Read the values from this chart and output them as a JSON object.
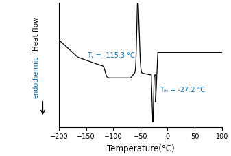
{
  "xlabel": "Temperature(°C)",
  "ylabel_main": "Heat flow",
  "ylabel_sub": "endothermic",
  "xlim": [
    -200,
    100
  ],
  "xticks": [
    -200,
    -150,
    -100,
    -50,
    0,
    50,
    100
  ],
  "annotation_tg": "Tᵧ = -115.3 °C",
  "annotation_tm": "Tₘ = -27.2 °C",
  "line_color": "#000000",
  "annotation_color": "#0070c0",
  "background_color": "#ffffff"
}
